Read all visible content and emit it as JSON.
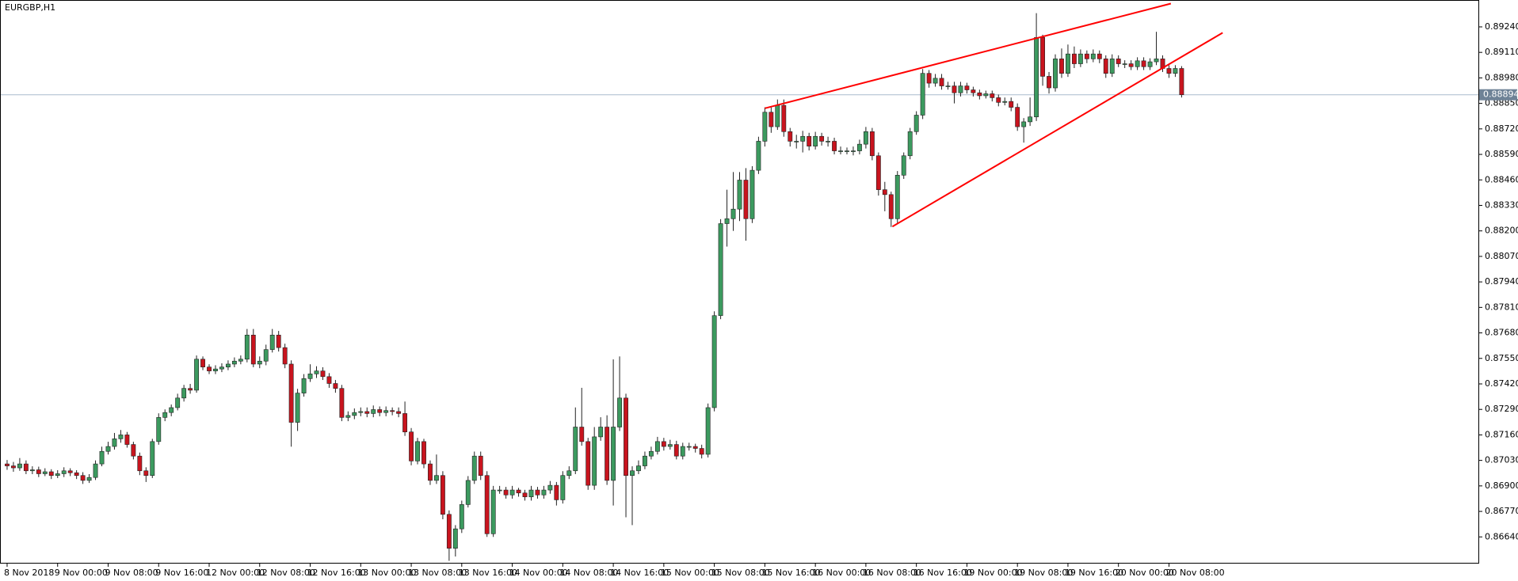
{
  "chart_data": {
    "type": "candlestick",
    "title": "EURGBP,H1",
    "up_color": "#3c9a5f",
    "down_color": "#c8141e",
    "xlim": [
      -1,
      233
    ],
    "ylim": [
      0.86508,
      0.89373
    ],
    "xticks": [
      {
        "value": 0,
        "label": "8 Nov 2018"
      },
      {
        "value": 8,
        "label": "9 Nov 00:00"
      },
      {
        "value": 16,
        "label": "9 Nov 08:00"
      },
      {
        "value": 24,
        "label": "9 Nov 16:00"
      },
      {
        "value": 32,
        "label": "12 Nov 00:00"
      },
      {
        "value": 40,
        "label": "12 Nov 08:00"
      },
      {
        "value": 48,
        "label": "12 Nov 16:00"
      },
      {
        "value": 56,
        "label": "13 Nov 00:00"
      },
      {
        "value": 64,
        "label": "13 Nov 08:00"
      },
      {
        "value": 72,
        "label": "13 Nov 16:00"
      },
      {
        "value": 80,
        "label": "14 Nov 00:00"
      },
      {
        "value": 88,
        "label": "14 Nov 08:00"
      },
      {
        "value": 96,
        "label": "14 Nov 16:00"
      },
      {
        "value": 104,
        "label": "15 Nov 00:00"
      },
      {
        "value": 112,
        "label": "15 Nov 08:00"
      },
      {
        "value": 120,
        "label": "15 Nov 16:00"
      },
      {
        "value": 128,
        "label": "16 Nov 00:00"
      },
      {
        "value": 136,
        "label": "16 Nov 08:00"
      },
      {
        "value": 144,
        "label": "16 Nov 16:00"
      },
      {
        "value": 152,
        "label": "19 Nov 00:00"
      },
      {
        "value": 160,
        "label": "19 Nov 08:00"
      },
      {
        "value": 168,
        "label": "19 Nov 16:00"
      },
      {
        "value": 176,
        "label": "20 Nov 00:00"
      },
      {
        "value": 184,
        "label": "20 Nov 08:00"
      }
    ],
    "yticks": [
      {
        "value": 0.8924,
        "label": "0.89240"
      },
      {
        "value": 0.8911,
        "label": "0.89110"
      },
      {
        "value": 0.8898,
        "label": "0.88980"
      },
      {
        "value": 0.8885,
        "label": "0.88850"
      },
      {
        "value": 0.8872,
        "label": "0.88720"
      },
      {
        "value": 0.8859,
        "label": "0.88590"
      },
      {
        "value": 0.8846,
        "label": "0.88460"
      },
      {
        "value": 0.8833,
        "label": "0.88330"
      },
      {
        "value": 0.882,
        "label": "0.88200"
      },
      {
        "value": 0.8807,
        "label": "0.88070"
      },
      {
        "value": 0.8794,
        "label": "0.87940"
      },
      {
        "value": 0.8781,
        "label": "0.87810"
      },
      {
        "value": 0.8768,
        "label": "0.87680"
      },
      {
        "value": 0.8755,
        "label": "0.87550"
      },
      {
        "value": 0.8742,
        "label": "0.87420"
      },
      {
        "value": 0.8729,
        "label": "0.87290"
      },
      {
        "value": 0.8716,
        "label": "0.87160"
      },
      {
        "value": 0.8703,
        "label": "0.87030"
      },
      {
        "value": 0.869,
        "label": "0.86900"
      },
      {
        "value": 0.8677,
        "label": "0.86770"
      },
      {
        "value": 0.8664,
        "label": "0.86640"
      }
    ],
    "current_price": {
      "value": 0.88894,
      "label": "0.88894",
      "color": "#a9bccd"
    },
    "trendlines": [
      {
        "color": "#ff0000",
        "x": [
          120,
          184.3
        ],
        "y": [
          0.88825,
          0.89359
        ]
      },
      {
        "color": "#ff0000",
        "x": [
          140.2,
          192.5
        ],
        "y": [
          0.88222,
          0.8921
        ]
      }
    ],
    "series": [
      {
        "open": [
          0.87012,
          0.87002,
          0.86992,
          0.87012,
          0.86977,
          0.86982,
          0.86962,
          0.86972,
          0.86953,
          0.86962,
          0.86977,
          0.86967,
          0.86953,
          0.86928,
          0.86943,
          0.87012,
          0.87076,
          0.87101,
          0.8714,
          0.8716,
          0.87111,
          0.87052,
          0.86977,
          0.86953,
          0.87126,
          0.87249,
          0.87274,
          0.87299,
          0.87348,
          0.87397,
          0.87388,
          0.87546,
          0.87506,
          0.87486,
          0.87496,
          0.87506,
          0.87521,
          0.87536,
          0.87546,
          0.87669,
          0.87521,
          0.87536,
          0.87595,
          0.87669,
          0.87605,
          0.87521,
          0.87224,
          0.87373,
          0.87447,
          0.87471,
          0.87486,
          0.87457,
          0.87422,
          0.87397,
          0.87249,
          0.87259,
          0.87274,
          0.87279,
          0.87269,
          0.87289,
          0.87274,
          0.87284,
          0.87279,
          0.87269,
          0.87175,
          0.87027,
          0.87126,
          0.87012,
          0.86928,
          0.86953,
          0.86755,
          0.86582,
          0.86681,
          0.86805,
          0.86928,
          0.87052,
          0.86953,
          0.86656,
          0.86879,
          0.86879,
          0.86854,
          0.86879,
          0.86864,
          0.86844,
          0.86879,
          0.86854,
          0.86879,
          0.86903,
          0.86829,
          0.86953,
          0.86977,
          0.872,
          0.87126,
          0.86903,
          0.8715,
          0.872,
          0.86928,
          0.872,
          0.87348,
          0.86953,
          0.86977,
          0.87002,
          0.87052,
          0.87076,
          0.87126,
          0.87101,
          0.87111,
          0.87052,
          0.87101,
          0.87101,
          0.87091,
          0.87061,
          0.87299,
          0.87768,
          0.88237,
          0.88262,
          0.88311,
          0.88459,
          0.88262,
          0.88509,
          0.88657,
          0.88805,
          0.88731,
          0.8884,
          0.88706,
          0.88657,
          0.88657,
          0.88682,
          0.88632,
          0.88682,
          0.88657,
          0.88657,
          0.88608,
          0.88608,
          0.88608,
          0.88608,
          0.88642,
          0.88706,
          0.88583,
          0.8841,
          0.88385,
          0.88262,
          0.88484,
          0.88583,
          0.88706,
          0.8879,
          0.89003,
          0.88953,
          0.88978,
          0.88939,
          0.88939,
          0.88904,
          0.88939,
          0.88919,
          0.88904,
          0.88889,
          0.88899,
          0.88879,
          0.88855,
          0.8886,
          0.8883,
          0.88731,
          0.88756,
          0.88781,
          0.89186,
          0.88988,
          0.88929,
          0.89077,
          0.89003,
          0.89102,
          0.89052,
          0.89102,
          0.89077,
          0.89102,
          0.89077,
          0.89003,
          0.89077,
          0.89052,
          0.89052,
          0.89037,
          0.89067,
          0.89037,
          0.89062,
          0.89077,
          0.89028,
          0.89003,
          0.89028
        ],
        "high": [
          0.87032,
          0.87022,
          0.87042,
          0.8703,
          0.87,
          0.86998,
          0.8699,
          0.86985,
          0.8698,
          0.86995,
          0.8699,
          0.8698,
          0.8697,
          0.8696,
          0.8703,
          0.871,
          0.87125,
          0.8717,
          0.87185,
          0.87175,
          0.87125,
          0.8707,
          0.86995,
          0.8714,
          0.8727,
          0.8729,
          0.87315,
          0.8737,
          0.87415,
          0.8742,
          0.87565,
          0.8756,
          0.8752,
          0.87515,
          0.87525,
          0.8754,
          0.87555,
          0.87565,
          0.877,
          0.877,
          0.8756,
          0.8762,
          0.877,
          0.8769,
          0.87625,
          0.8754,
          0.87395,
          0.8747,
          0.8752,
          0.8751,
          0.87505,
          0.87475,
          0.8744,
          0.87415,
          0.8728,
          0.87295,
          0.873,
          0.873,
          0.8731,
          0.87305,
          0.87305,
          0.873,
          0.873,
          0.8733,
          0.87195,
          0.87145,
          0.8714,
          0.8703,
          0.8706,
          0.86975,
          0.86775,
          0.867,
          0.86825,
          0.8695,
          0.87075,
          0.87075,
          0.86975,
          0.869,
          0.869,
          0.86895,
          0.869,
          0.8689,
          0.8688,
          0.869,
          0.86895,
          0.869,
          0.86925,
          0.8692,
          0.86975,
          0.87,
          0.873,
          0.874,
          0.87145,
          0.872,
          0.8725,
          0.8726,
          0.87545,
          0.8756,
          0.8737,
          0.87,
          0.8703,
          0.87075,
          0.871,
          0.8715,
          0.87145,
          0.87135,
          0.8713,
          0.8712,
          0.8712,
          0.87115,
          0.8711,
          0.8732,
          0.8779,
          0.8826,
          0.8841,
          0.885,
          0.885,
          0.8852,
          0.8853,
          0.8868,
          0.8883,
          0.8883,
          0.8887,
          0.8887,
          0.88725,
          0.8869,
          0.8871,
          0.887,
          0.88705,
          0.887,
          0.8868,
          0.88675,
          0.8863,
          0.88625,
          0.8863,
          0.88665,
          0.8873,
          0.88725,
          0.886,
          0.8845,
          0.884,
          0.88505,
          0.886,
          0.88725,
          0.8881,
          0.89025,
          0.8902,
          0.89,
          0.89,
          0.8896,
          0.8896,
          0.8896,
          0.88955,
          0.88935,
          0.8892,
          0.88915,
          0.88915,
          0.88895,
          0.8888,
          0.8888,
          0.8885,
          0.88775,
          0.8888,
          0.8931,
          0.892,
          0.8901,
          0.891,
          0.8913,
          0.8915,
          0.8914,
          0.89125,
          0.8912,
          0.89125,
          0.8912,
          0.89095,
          0.891,
          0.89095,
          0.8907,
          0.8907,
          0.89085,
          0.89085,
          0.8908,
          0.89215,
          0.89095,
          0.89045,
          0.89045,
          0.8904
        ],
        "low": [
          0.86982,
          0.86972,
          0.86977,
          0.8696,
          0.8696,
          0.86945,
          0.8695,
          0.86935,
          0.8694,
          0.86945,
          0.8695,
          0.86935,
          0.8691,
          0.86915,
          0.8693,
          0.87,
          0.8706,
          0.87085,
          0.8712,
          0.87095,
          0.87035,
          0.86955,
          0.8692,
          0.8694,
          0.8711,
          0.8723,
          0.87255,
          0.87285,
          0.8733,
          0.8737,
          0.87375,
          0.8749,
          0.8747,
          0.8747,
          0.8748,
          0.8749,
          0.87505,
          0.8752,
          0.8753,
          0.87505,
          0.875,
          0.87515,
          0.8758,
          0.87585,
          0.875,
          0.871,
          0.8718,
          0.87355,
          0.8743,
          0.8745,
          0.8744,
          0.874,
          0.87375,
          0.8723,
          0.8723,
          0.8724,
          0.87255,
          0.8725,
          0.8725,
          0.87255,
          0.87255,
          0.8726,
          0.8725,
          0.87155,
          0.87005,
          0.8701,
          0.8699,
          0.86905,
          0.8691,
          0.8673,
          0.86518,
          0.8654,
          0.8666,
          0.8679,
          0.8691,
          0.8693,
          0.8664,
          0.8664,
          0.8686,
          0.86835,
          0.86835,
          0.86845,
          0.86825,
          0.86825,
          0.86835,
          0.86835,
          0.8686,
          0.868,
          0.8681,
          0.86935,
          0.8696,
          0.87105,
          0.8688,
          0.8688,
          0.8713,
          0.86905,
          0.868,
          0.8718,
          0.8674,
          0.867,
          0.8696,
          0.86985,
          0.87035,
          0.8706,
          0.8708,
          0.87085,
          0.87035,
          0.87035,
          0.8708,
          0.8707,
          0.8704,
          0.87045,
          0.8728,
          0.8775,
          0.8812,
          0.882,
          0.8825,
          0.8815,
          0.8824,
          0.8849,
          0.8863,
          0.887,
          0.88715,
          0.8868,
          0.8863,
          0.8862,
          0.886,
          0.8861,
          0.88615,
          0.88635,
          0.8863,
          0.8859,
          0.8859,
          0.8859,
          0.88585,
          0.8859,
          0.8862,
          0.8856,
          0.8838,
          0.883,
          0.8822,
          0.8824,
          0.88465,
          0.88565,
          0.8869,
          0.8877,
          0.8893,
          0.88935,
          0.8892,
          0.8892,
          0.8885,
          0.88885,
          0.889,
          0.88885,
          0.8887,
          0.88875,
          0.8886,
          0.88835,
          0.8884,
          0.8881,
          0.8871,
          0.8865,
          0.88735,
          0.8876,
          0.8894,
          0.889,
          0.8891,
          0.8898,
          0.88985,
          0.8903,
          0.89035,
          0.89055,
          0.8906,
          0.89055,
          0.8898,
          0.88985,
          0.89035,
          0.8903,
          0.8902,
          0.8902,
          0.8902,
          0.8902,
          0.89045,
          0.8901,
          0.8898,
          0.88985,
          0.8888
        ],
        "close": [
          0.87002,
          0.86992,
          0.87012,
          0.86977,
          0.86982,
          0.86962,
          0.86972,
          0.86953,
          0.86962,
          0.86977,
          0.86967,
          0.86953,
          0.86928,
          0.86943,
          0.87012,
          0.87076,
          0.87101,
          0.8714,
          0.8716,
          0.87111,
          0.87052,
          0.86977,
          0.86953,
          0.87126,
          0.87249,
          0.87274,
          0.87299,
          0.87348,
          0.87397,
          0.87388,
          0.87546,
          0.87506,
          0.87486,
          0.87496,
          0.87506,
          0.87521,
          0.87536,
          0.87546,
          0.87669,
          0.87521,
          0.87536,
          0.87595,
          0.87669,
          0.87605,
          0.87521,
          0.87224,
          0.87373,
          0.87447,
          0.87471,
          0.87486,
          0.87457,
          0.87422,
          0.87397,
          0.87249,
          0.87259,
          0.87274,
          0.87279,
          0.87269,
          0.87289,
          0.87274,
          0.87284,
          0.87279,
          0.87269,
          0.87175,
          0.87027,
          0.87126,
          0.87012,
          0.86928,
          0.86953,
          0.86755,
          0.86582,
          0.86681,
          0.86805,
          0.86928,
          0.87052,
          0.86953,
          0.86656,
          0.86879,
          0.86879,
          0.86854,
          0.86879,
          0.86864,
          0.86844,
          0.86879,
          0.86854,
          0.86879,
          0.86903,
          0.86829,
          0.86953,
          0.86977,
          0.872,
          0.87126,
          0.86903,
          0.8715,
          0.872,
          0.86928,
          0.872,
          0.87348,
          0.86953,
          0.86977,
          0.87002,
          0.87052,
          0.87076,
          0.87126,
          0.87101,
          0.87111,
          0.87052,
          0.87101,
          0.87101,
          0.87091,
          0.87061,
          0.87299,
          0.87768,
          0.88237,
          0.88262,
          0.88311,
          0.88459,
          0.88262,
          0.88509,
          0.88657,
          0.88805,
          0.88731,
          0.8884,
          0.88706,
          0.88657,
          0.88657,
          0.88682,
          0.88632,
          0.88682,
          0.88657,
          0.88657,
          0.88608,
          0.88608,
          0.88608,
          0.88608,
          0.88642,
          0.88706,
          0.88583,
          0.8841,
          0.88385,
          0.88262,
          0.88484,
          0.88583,
          0.88706,
          0.8879,
          0.89003,
          0.88953,
          0.88978,
          0.88939,
          0.88939,
          0.88904,
          0.88939,
          0.88919,
          0.88904,
          0.88889,
          0.88899,
          0.88879,
          0.88855,
          0.8886,
          0.8883,
          0.88731,
          0.88756,
          0.88781,
          0.89186,
          0.88988,
          0.88929,
          0.89077,
          0.89003,
          0.89102,
          0.89052,
          0.89102,
          0.89077,
          0.89102,
          0.89077,
          0.89003,
          0.89077,
          0.89052,
          0.89052,
          0.89037,
          0.89067,
          0.89037,
          0.89062,
          0.89077,
          0.89028,
          0.89003,
          0.89028,
          0.88894
        ]
      }
    ]
  }
}
